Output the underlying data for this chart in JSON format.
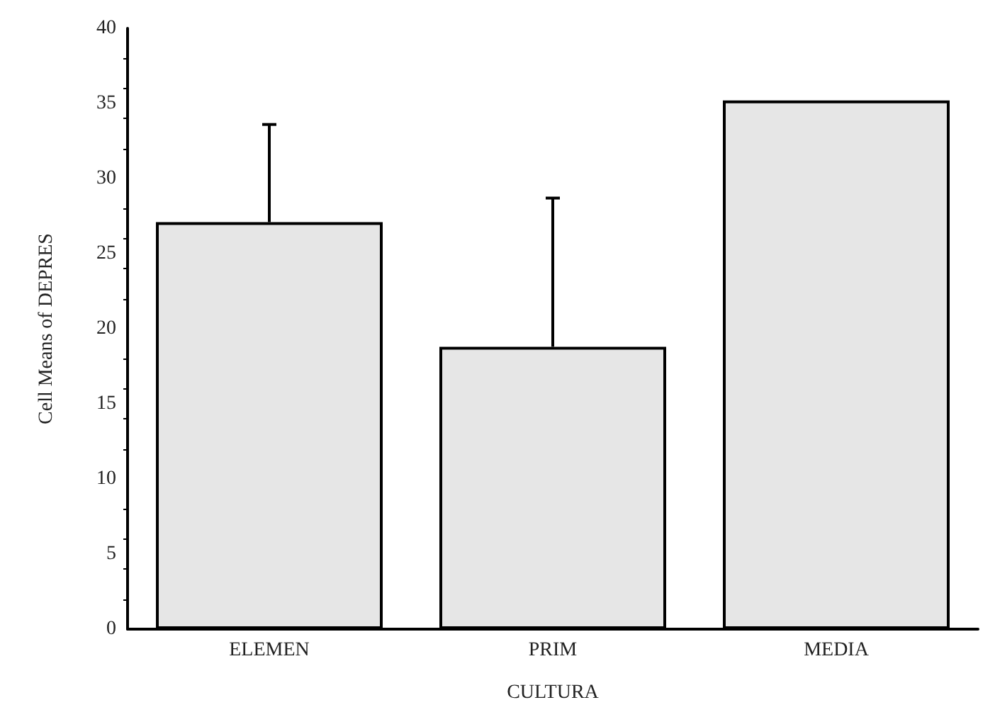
{
  "chart_data": {
    "type": "bar",
    "xlabel": "CULTURA",
    "ylabel": "Cell Means of DEPRES",
    "categories": [
      "ELEMEN",
      "PRIM",
      "MEDIA"
    ],
    "values": [
      27.1,
      18.8,
      35.2
    ],
    "errors": [
      [
        27.1,
        33.6
      ],
      [
        18.8,
        28.7
      ],
      null
    ],
    "color": "#e6e6e6",
    "ylim": [
      0,
      40
    ],
    "yticks": [
      0,
      5,
      10,
      15,
      20,
      25,
      30,
      35,
      40
    ],
    "grid": false
  }
}
